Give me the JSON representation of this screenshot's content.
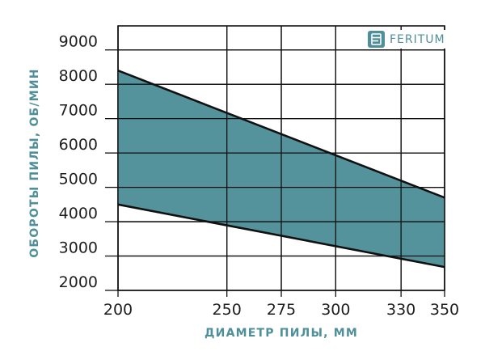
{
  "brand": {
    "name": "FERITUM",
    "icon": "feritum-logo-icon"
  },
  "colors": {
    "band_fill": "#4f8f99",
    "line": "#111111",
    "grid": "#111111",
    "title": "#4f8f99"
  },
  "chart_data": {
    "type": "area",
    "title": "",
    "xlabel": "ДИАМЕТР ПИЛЫ, ММ",
    "ylabel": "ОБОРОТЫ ПИЛЫ, ОБ/МИН",
    "x_ticks": [
      200,
      250,
      275,
      300,
      330,
      350
    ],
    "y_ticks": [
      2000,
      3000,
      4000,
      5000,
      6000,
      7000,
      8000,
      9000
    ],
    "xlim": [
      200,
      350
    ],
    "ylim": [
      2000,
      9700
    ],
    "grid": true,
    "series": [
      {
        "x": [
          200,
          350
        ],
        "values": [
          8400,
          4700
        ]
      },
      {
        "x": [
          200,
          350
        ],
        "values": [
          4500,
          2680
        ]
      }
    ]
  }
}
